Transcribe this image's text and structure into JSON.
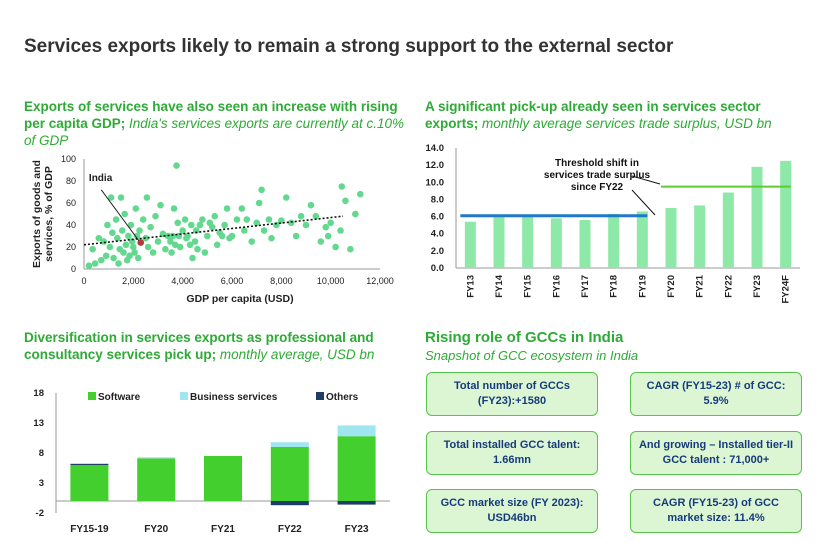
{
  "page": {
    "title": "Services exports likely to remain a strong support to the external sector"
  },
  "panels": {
    "scatter": {
      "title": "Exports of services have also seen an increase with rising per capita GDP;",
      "subtitle": " India's services exports are currently at c.10% of GDP"
    },
    "surplus": {
      "title": "A significant pick-up already seen in services sector exports;",
      "subtitle": " monthly average services trade surplus, USD bn"
    },
    "diversification": {
      "title": "Diversification in services exports as professional and consultancy services pick up;",
      "subtitle": " monthly average, USD bn"
    }
  },
  "gcc": {
    "title": "Rising role of GCCs in India",
    "subtitle": "Snapshot of GCC ecosystem in India",
    "boxes": [
      "Total number of GCCs (FY23):+1580",
      "CAGR (FY15-23) # of GCC: 5.9%",
      "Total installed GCC talent: 1.66mn",
      "And growing – Installed tier-II GCC talent : 71,000+",
      "GCC market size (FY 2023): USD46bn",
      "CAGR (FY15-23) of GCC market size: 11.4%"
    ]
  },
  "colors": {
    "accent": "#2eaa36",
    "bar": "#8ee8a8",
    "dots": "#63d98f",
    "line_blue": "#1f78c8",
    "line_green": "#5ccc2e"
  },
  "chart_data": [
    {
      "type": "scatter",
      "xlabel": "GDP per capita (USD)",
      "ylabel": "Exports of goods and services, % of GDP",
      "xlim": [
        0,
        12000
      ],
      "ylim": [
        0,
        100
      ],
      "xticks": [
        "0",
        "2,000",
        "4,000",
        "6,000",
        "8,000",
        "10,000",
        "12,000"
      ],
      "yticks": [
        "0",
        "20",
        "40",
        "60",
        "80",
        "100"
      ],
      "annotation": {
        "label": "India",
        "x": 2300,
        "y": 24
      },
      "trendline": {
        "x": [
          0,
          10500
        ],
        "y": [
          22,
          48
        ]
      },
      "points": [
        [
          200,
          3
        ],
        [
          350,
          18
        ],
        [
          450,
          5
        ],
        [
          600,
          28
        ],
        [
          700,
          8
        ],
        [
          800,
          25
        ],
        [
          900,
          12
        ],
        [
          950,
          40
        ],
        [
          1050,
          20
        ],
        [
          1100,
          65
        ],
        [
          1150,
          33
        ],
        [
          1200,
          10
        ],
        [
          1300,
          45
        ],
        [
          1350,
          28
        ],
        [
          1400,
          5
        ],
        [
          1450,
          18
        ],
        [
          1500,
          65
        ],
        [
          1550,
          35
        ],
        [
          1600,
          15
        ],
        [
          1650,
          50
        ],
        [
          1700,
          22
        ],
        [
          1750,
          8
        ],
        [
          1800,
          30
        ],
        [
          1850,
          12
        ],
        [
          1900,
          40
        ],
        [
          1950,
          25
        ],
        [
          2000,
          20
        ],
        [
          2050,
          15
        ],
        [
          2100,
          55
        ],
        [
          2150,
          30
        ],
        [
          2200,
          10
        ],
        [
          2250,
          35
        ],
        [
          2400,
          45
        ],
        [
          2500,
          28
        ],
        [
          2550,
          65
        ],
        [
          2600,
          20
        ],
        [
          2700,
          38
        ],
        [
          2800,
          15
        ],
        [
          2900,
          48
        ],
        [
          3000,
          25
        ],
        [
          3100,
          58
        ],
        [
          3200,
          32
        ],
        [
          3300,
          18
        ],
        [
          3400,
          30
        ],
        [
          3500,
          25
        ],
        [
          3550,
          15
        ],
        [
          3600,
          30
        ],
        [
          3650,
          55
        ],
        [
          3700,
          22
        ],
        [
          3750,
          94
        ],
        [
          3800,
          42
        ],
        [
          3850,
          30
        ],
        [
          3900,
          20
        ],
        [
          4000,
          35
        ],
        [
          4100,
          45
        ],
        [
          4150,
          28
        ],
        [
          4200,
          30
        ],
        [
          4300,
          22
        ],
        [
          4350,
          40
        ],
        [
          4400,
          10
        ],
        [
          4500,
          25
        ],
        [
          4550,
          35
        ],
        [
          4600,
          18
        ],
        [
          4700,
          40
        ],
        [
          4800,
          45
        ],
        [
          4900,
          15
        ],
        [
          5000,
          30
        ],
        [
          5100,
          42
        ],
        [
          5200,
          38
        ],
        [
          5300,
          48
        ],
        [
          5400,
          22
        ],
        [
          5500,
          33
        ],
        [
          5600,
          30
        ],
        [
          5700,
          40
        ],
        [
          5800,
          55
        ],
        [
          5900,
          28
        ],
        [
          6000,
          30
        ],
        [
          6200,
          45
        ],
        [
          6400,
          55
        ],
        [
          6500,
          35
        ],
        [
          6600,
          45
        ],
        [
          6800,
          25
        ],
        [
          7000,
          42
        ],
        [
          7100,
          60
        ],
        [
          7200,
          72
        ],
        [
          7300,
          35
        ],
        [
          7500,
          45
        ],
        [
          7600,
          28
        ],
        [
          7800,
          40
        ],
        [
          8000,
          44
        ],
        [
          8200,
          65
        ],
        [
          8400,
          42
        ],
        [
          8600,
          30
        ],
        [
          8800,
          48
        ],
        [
          9000,
          40
        ],
        [
          9200,
          58
        ],
        [
          9400,
          48
        ],
        [
          9600,
          25
        ],
        [
          9800,
          38
        ],
        [
          9900,
          30
        ],
        [
          10000,
          42
        ],
        [
          10200,
          20
        ],
        [
          10400,
          35
        ],
        [
          10600,
          62
        ],
        [
          10800,
          18
        ],
        [
          11000,
          50
        ],
        [
          11200,
          68
        ],
        [
          10450,
          75
        ]
      ]
    },
    {
      "type": "bar",
      "categories": [
        "FY13",
        "FY14",
        "FY15",
        "FY16",
        "FY17",
        "FY18",
        "FY19",
        "FY20",
        "FY21",
        "FY22",
        "FY23",
        "FY24F"
      ],
      "values": [
        5.4,
        6.0,
        6.1,
        5.8,
        5.6,
        6.3,
        6.6,
        7.0,
        7.3,
        8.8,
        11.8,
        12.5
      ],
      "ylim": [
        0,
        14
      ],
      "yticks": [
        "0.0",
        "2.0",
        "4.0",
        "6.0",
        "8.0",
        "10.0",
        "12.0",
        "14.0"
      ],
      "reference_lines": [
        {
          "from": "FY13",
          "to": "FY19",
          "value": 6.1
        },
        {
          "from": "FY20",
          "to": "FY24F",
          "value": 9.5
        }
      ],
      "annotation": "Threshold shift in services trade surplus since FY22"
    },
    {
      "type": "bar",
      "stacked": true,
      "categories": [
        "FY15-19",
        "FY20",
        "FY21",
        "FY22",
        "FY23"
      ],
      "ylim": [
        -2,
        18
      ],
      "yticks": [
        "-2",
        "3",
        "8",
        "13",
        "18"
      ],
      "series": [
        {
          "name": "Software",
          "values": [
            6.0,
            7.1,
            7.5,
            9.0,
            10.8
          ],
          "color": "#43cf2e"
        },
        {
          "name": "Business services",
          "values": [
            0,
            0.2,
            0,
            0.8,
            1.8
          ],
          "color": "#9fe6f0"
        },
        {
          "name": "Others",
          "values": [
            0.2,
            0,
            0,
            -0.7,
            -0.6
          ],
          "color": "#1d3c66"
        }
      ]
    }
  ]
}
